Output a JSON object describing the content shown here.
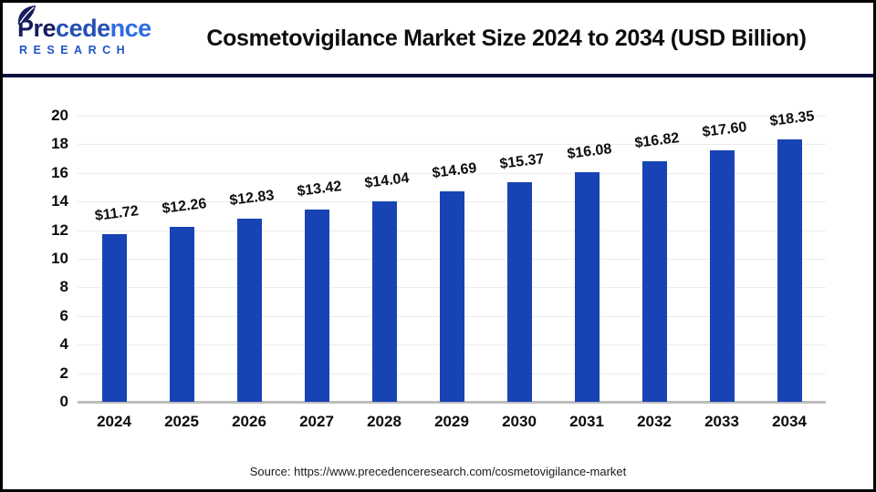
{
  "header": {
    "logo": {
      "name_parts": [
        "Pre",
        "cede",
        "nce"
      ],
      "subtitle": "RESEARCH"
    },
    "title": "Cosmetovigilance Market Size 2024 to 2034 (USD Billion)"
  },
  "chart_data": {
    "type": "bar",
    "title": "Cosmetovigilance Market Size 2024 to 2034 (USD Billion)",
    "categories": [
      "2024",
      "2025",
      "2026",
      "2027",
      "2028",
      "2029",
      "2030",
      "2031",
      "2032",
      "2033",
      "2034"
    ],
    "values": [
      11.72,
      12.26,
      12.83,
      13.42,
      14.04,
      14.69,
      15.37,
      16.08,
      16.82,
      17.6,
      18.35
    ],
    "bar_labels": [
      "$11.72",
      "$12.26",
      "$12.83",
      "$13.42",
      "$14.04",
      "$14.69",
      "$15.37",
      "$16.08",
      "$16.82",
      "$17.60",
      "$18.35"
    ],
    "xlabel": "",
    "ylabel": "",
    "ylim": [
      0,
      20
    ],
    "ytick_step": 2,
    "yticks": [
      "0",
      "2",
      "4",
      "6",
      "8",
      "10",
      "12",
      "14",
      "16",
      "18",
      "20"
    ],
    "grid": true,
    "legend": "none",
    "bar_color": "#1843b5"
  },
  "footer": {
    "source": "Source: https://www.precedenceresearch.com/cosmetovigilance-market"
  },
  "colors": {
    "bar": "#1843b5",
    "divider": "#0d1040",
    "axis_line": "#bdbdbd",
    "gridline": "#ececec",
    "logo_dark": "#161d5e",
    "logo_mid": "#2450b4",
    "logo_light": "#2e6ce2",
    "logo_research": "#2053c5",
    "text": "#0d0d0d"
  }
}
